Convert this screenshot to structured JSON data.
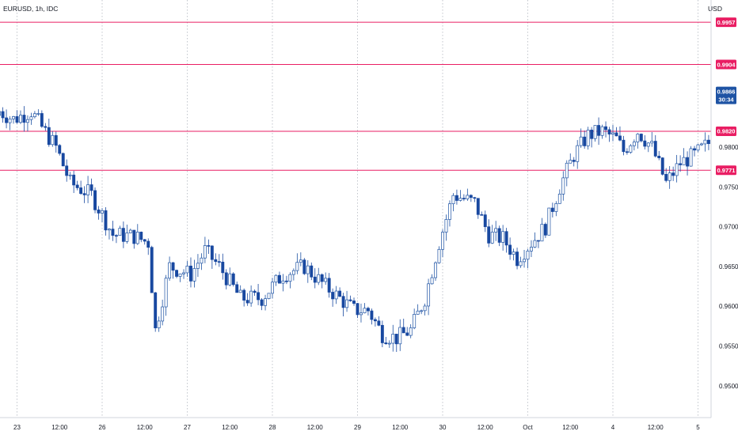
{
  "header": {
    "title": "EURUSD, 1h, IDC",
    "currency": "USD"
  },
  "colors": {
    "bull": "#1e53a4",
    "bear": "#1848a0",
    "level": "#e91e63",
    "grid": "#9aa0ab",
    "price_tag": "#1e53a4"
  },
  "chart_data": {
    "type": "candlestick",
    "symbol": "EURUSD",
    "interval": "1h",
    "source": "IDC",
    "ylim": [
      0.946,
      0.9985
    ],
    "y_ticks": [
      "0.9500",
      "0.9550",
      "0.9600",
      "0.9650",
      "0.9700",
      "0.9750",
      "0.9800"
    ],
    "x_ticks": [
      "23",
      "12:00",
      "26",
      "12:00",
      "27",
      "12:00",
      "28",
      "12:00",
      "29",
      "12:00",
      "30",
      "12:00",
      "Oct",
      "12:00",
      "4",
      "12:00",
      "5"
    ],
    "horizontal_levels": [
      "0.9957",
      "0.9904",
      "0.9820",
      "0.9771"
    ],
    "current_price": "0.9866",
    "countdown": "30:34",
    "anchors": [
      [
        0,
        0.9845
      ],
      [
        4,
        0.9835
      ],
      [
        9,
        0.9845
      ],
      [
        12,
        0.9825
      ],
      [
        16,
        0.98
      ],
      [
        20,
        0.9755
      ],
      [
        26,
        0.974
      ],
      [
        32,
        0.969
      ],
      [
        38,
        0.9688
      ],
      [
        42,
        0.968
      ],
      [
        44,
        0.957
      ],
      [
        48,
        0.965
      ],
      [
        54,
        0.964
      ],
      [
        58,
        0.967
      ],
      [
        62,
        0.965
      ],
      [
        68,
        0.961
      ],
      [
        74,
        0.961
      ],
      [
        80,
        0.964
      ],
      [
        86,
        0.965
      ],
      [
        92,
        0.9625
      ],
      [
        96,
        0.961
      ],
      [
        100,
        0.9595
      ],
      [
        104,
        0.9595
      ],
      [
        108,
        0.9565
      ],
      [
        112,
        0.956
      ],
      [
        116,
        0.957
      ],
      [
        120,
        0.961
      ],
      [
        124,
        0.968
      ],
      [
        128,
        0.974
      ],
      [
        134,
        0.973
      ],
      [
        138,
        0.969
      ],
      [
        142,
        0.9685
      ],
      [
        146,
        0.966
      ],
      [
        150,
        0.968
      ],
      [
        154,
        0.97
      ],
      [
        158,
        0.975
      ],
      [
        162,
        0.979
      ],
      [
        166,
        0.9815
      ],
      [
        170,
        0.982
      ],
      [
        174,
        0.981
      ],
      [
        176,
        0.9795
      ],
      [
        180,
        0.982
      ],
      [
        184,
        0.98
      ],
      [
        188,
        0.9755
      ],
      [
        192,
        0.978
      ],
      [
        196,
        0.979
      ],
      [
        200,
        0.9805
      ],
      [
        204,
        0.98
      ],
      [
        206,
        0.9815
      ],
      [
        210,
        0.981
      ],
      [
        214,
        0.979
      ],
      [
        218,
        0.976
      ],
      [
        222,
        0.9765
      ],
      [
        226,
        0.981
      ],
      [
        230,
        0.982
      ],
      [
        234,
        0.9825
      ],
      [
        238,
        0.982
      ],
      [
        240,
        0.983
      ],
      [
        244,
        0.985
      ],
      [
        246,
        0.9875
      ],
      [
        248,
        0.9866
      ]
    ]
  }
}
